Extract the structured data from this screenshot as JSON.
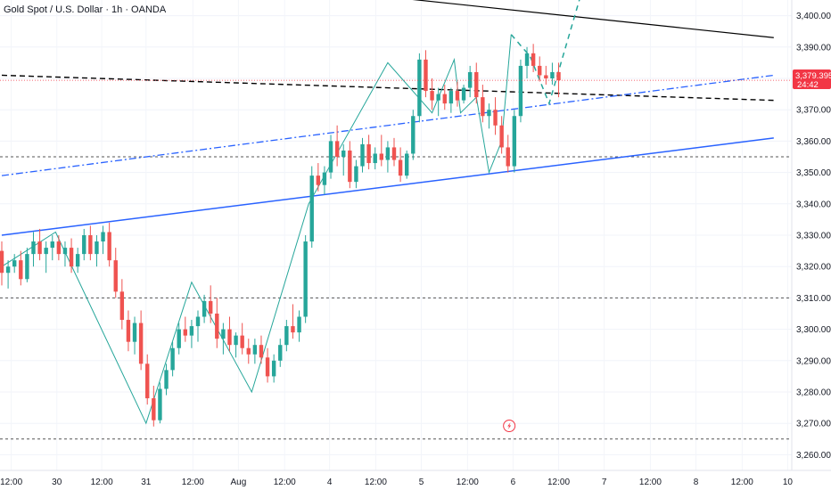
{
  "header": {
    "title": "Gold Spot / U.S. Dollar · 1h · OANDA"
  },
  "colors": {
    "up": "#26a69a",
    "down": "#ef5350",
    "trend": "#000000",
    "support": "#2962ff",
    "pattern": "#26a69a",
    "dashed": "#555555",
    "badge": "#f23645",
    "bolt": "#f23645"
  },
  "price_badge": {
    "price": "3,379.395",
    "countdown": "24:42"
  },
  "chart_data": {
    "type": "candlestick",
    "symbol": "Gold Spot / U.S. Dollar",
    "interval": "1h",
    "source": "OANDA",
    "ylim": [
      3255,
      3405
    ],
    "x_range": [
      0,
      124
    ],
    "y_ticks": [
      3400,
      3390,
      3380,
      3370,
      3360,
      3350,
      3340,
      3330,
      3320,
      3310,
      3300,
      3290,
      3280,
      3270,
      3260
    ],
    "y_tick_labels": [
      "3,400.000",
      "3,390.000",
      "3,380.000",
      "3,370.000",
      "3,360.000",
      "3,350.000",
      "3,340.000",
      "3,330.000",
      "3,320.000",
      "3,310.000",
      "3,300.000",
      "3,290.000",
      "3,280.000",
      "3,270.000",
      "3,260.000"
    ],
    "x_ticks": [
      {
        "x": 1.5,
        "label": "12:00"
      },
      {
        "x": 8.7,
        "label": "30"
      },
      {
        "x": 15.8,
        "label": "12:00"
      },
      {
        "x": 22.8,
        "label": "31"
      },
      {
        "x": 30.2,
        "label": "12:00"
      },
      {
        "x": 37.4,
        "label": "Aug"
      },
      {
        "x": 44.7,
        "label": "12:00"
      },
      {
        "x": 51.8,
        "label": "4"
      },
      {
        "x": 59.1,
        "label": "12:00"
      },
      {
        "x": 66.3,
        "label": "5"
      },
      {
        "x": 73.6,
        "label": "12:00"
      },
      {
        "x": 80.8,
        "label": "6"
      },
      {
        "x": 88.0,
        "label": "12:00"
      },
      {
        "x": 95.2,
        "label": "7"
      },
      {
        "x": 102.5,
        "label": "12:00"
      },
      {
        "x": 109.7,
        "label": "8"
      },
      {
        "x": 117.0,
        "label": "12:00"
      },
      {
        "x": 124.2,
        "label": "10"
      }
    ],
    "candles": [
      [
        3325,
        3328,
        3314,
        3318
      ],
      [
        3318,
        3322,
        3313,
        3320
      ],
      [
        3320,
        3324,
        3318,
        3322
      ],
      [
        3322,
        3325,
        3314,
        3316
      ],
      [
        3316,
        3326,
        3315,
        3324
      ],
      [
        3324,
        3331,
        3320,
        3328
      ],
      [
        3328,
        3332,
        3322,
        3324
      ],
      [
        3324,
        3328,
        3318,
        3326
      ],
      [
        3326,
        3330,
        3322,
        3328
      ],
      [
        3328,
        3330,
        3322,
        3324
      ],
      [
        3324,
        3328,
        3320,
        3326
      ],
      [
        3326,
        3329,
        3318,
        3320
      ],
      [
        3320,
        3326,
        3318,
        3324
      ],
      [
        3324,
        3332,
        3322,
        3330
      ],
      [
        3330,
        3333,
        3322,
        3324
      ],
      [
        3324,
        3330,
        3320,
        3328
      ],
      [
        3328,
        3333,
        3324,
        3331
      ],
      [
        3331,
        3334,
        3320,
        3322
      ],
      [
        3322,
        3326,
        3310,
        3312
      ],
      [
        3312,
        3316,
        3300,
        3303
      ],
      [
        3303,
        3306,
        3293,
        3296
      ],
      [
        3296,
        3304,
        3292,
        3302
      ],
      [
        3302,
        3306,
        3287,
        3289
      ],
      [
        3289,
        3292,
        3276,
        3278
      ],
      [
        3278,
        3282,
        3269,
        3271
      ],
      [
        3271,
        3283,
        3270,
        3281
      ],
      [
        3281,
        3289,
        3279,
        3287
      ],
      [
        3287,
        3296,
        3285,
        3294
      ],
      [
        3294,
        3302,
        3292,
        3300
      ],
      [
        3300,
        3304,
        3296,
        3298
      ],
      [
        3298,
        3303,
        3294,
        3301
      ],
      [
        3301,
        3306,
        3296,
        3304
      ],
      [
        3304,
        3311,
        3302,
        3309
      ],
      [
        3309,
        3314,
        3302,
        3305
      ],
      [
        3305,
        3310,
        3294,
        3297
      ],
      [
        3297,
        3302,
        3292,
        3300
      ],
      [
        3300,
        3304,
        3293,
        3295
      ],
      [
        3295,
        3299,
        3291,
        3298
      ],
      [
        3298,
        3302,
        3292,
        3294
      ],
      [
        3294,
        3297,
        3289,
        3292
      ],
      [
        3292,
        3297,
        3289,
        3295
      ],
      [
        3295,
        3298,
        3289,
        3291
      ],
      [
        3291,
        3294,
        3283,
        3285
      ],
      [
        3285,
        3292,
        3283,
        3290
      ],
      [
        3290,
        3297,
        3288,
        3295
      ],
      [
        3295,
        3303,
        3293,
        3301
      ],
      [
        3301,
        3308,
        3297,
        3299
      ],
      [
        3299,
        3306,
        3296,
        3304
      ],
      [
        3304,
        3330,
        3302,
        3328
      ],
      [
        3328,
        3352,
        3326,
        3349
      ],
      [
        3349,
        3353,
        3344,
        3346
      ],
      [
        3346,
        3352,
        3343,
        3350
      ],
      [
        3350,
        3362,
        3348,
        3360
      ],
      [
        3360,
        3365,
        3352,
        3355
      ],
      [
        3355,
        3359,
        3349,
        3357
      ],
      [
        3357,
        3360,
        3345,
        3347
      ],
      [
        3347,
        3354,
        3345,
        3352
      ],
      [
        3352,
        3361,
        3350,
        3359
      ],
      [
        3359,
        3362,
        3351,
        3353
      ],
      [
        3353,
        3358,
        3351,
        3356
      ],
      [
        3356,
        3362,
        3352,
        3354
      ],
      [
        3354,
        3360,
        3350,
        3358
      ],
      [
        3358,
        3361,
        3352,
        3354
      ],
      [
        3354,
        3358,
        3347,
        3349
      ],
      [
        3349,
        3357,
        3348,
        3356
      ],
      [
        3356,
        3370,
        3354,
        3368
      ],
      [
        3368,
        3388,
        3366,
        3386
      ],
      [
        3386,
        3389,
        3374,
        3376
      ],
      [
        3376,
        3380,
        3370,
        3373
      ],
      [
        3373,
        3377,
        3368,
        3375
      ],
      [
        3375,
        3378,
        3370,
        3372
      ],
      [
        3372,
        3377,
        3369,
        3376
      ],
      [
        3376,
        3379,
        3371,
        3373
      ],
      [
        3373,
        3378,
        3372,
        3377
      ],
      [
        3377,
        3384,
        3374,
        3382
      ],
      [
        3382,
        3385,
        3372,
        3374
      ],
      [
        3374,
        3378,
        3366,
        3368
      ],
      [
        3368,
        3372,
        3364,
        3370
      ],
      [
        3370,
        3374,
        3362,
        3365
      ],
      [
        3365,
        3368,
        3356,
        3358
      ],
      [
        3358,
        3362,
        3350,
        3352
      ],
      [
        3352,
        3370,
        3350,
        3368
      ],
      [
        3368,
        3386,
        3366,
        3384
      ],
      [
        3384,
        3390,
        3380,
        3388
      ],
      [
        3388,
        3391,
        3382,
        3384
      ],
      [
        3384,
        3387,
        3379,
        3381
      ],
      [
        3381,
        3384,
        3378,
        3380
      ],
      [
        3380,
        3385,
        3378,
        3382
      ],
      [
        3382,
        3385,
        3374,
        3379.4
      ]
    ],
    "lines": [
      {
        "name": "descending-trendline",
        "style": "solid",
        "from": [
          0,
          3419
        ],
        "to": [
          122,
          3393
        ]
      },
      {
        "name": "horizontal-dashed-resistance",
        "style": "dashed",
        "from": [
          0,
          3381
        ],
        "to": [
          122,
          3373
        ]
      },
      {
        "name": "upper-channel-dashdot",
        "style": "dashdot",
        "from": [
          0,
          3349
        ],
        "to": [
          122,
          3381
        ]
      },
      {
        "name": "lower-support-line",
        "style": "solid",
        "from": [
          0,
          3330
        ],
        "to": [
          122,
          3361
        ]
      }
    ],
    "horizontal_levels": [
      3355,
      3310,
      3265
    ],
    "zigzag": [
      [
        0,
        3320
      ],
      [
        8.5,
        3331
      ],
      [
        22.8,
        3270
      ],
      [
        30,
        3315
      ],
      [
        39.5,
        3280
      ],
      [
        48.5,
        3340
      ],
      [
        61,
        3385
      ],
      [
        68,
        3369
      ],
      [
        71.5,
        3386
      ],
      [
        72.5,
        3369
      ],
      [
        75,
        3374
      ],
      [
        77,
        3350
      ],
      [
        79,
        3360
      ],
      [
        80.5,
        3394
      ]
    ],
    "projection": [
      [
        80.5,
        3394
      ],
      [
        83.5,
        3387
      ],
      [
        86.5,
        3372
      ],
      [
        92,
        3410
      ]
    ]
  }
}
